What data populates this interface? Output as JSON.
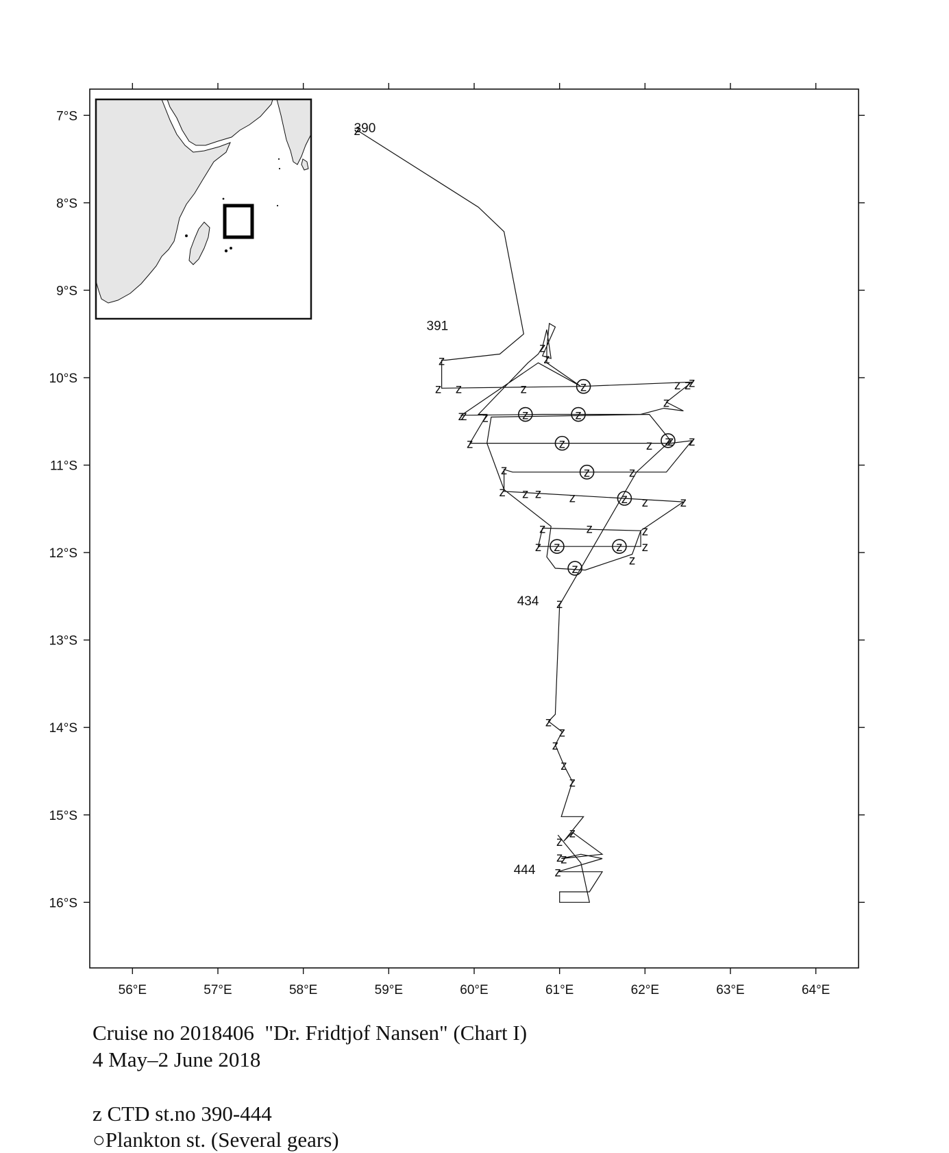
{
  "map": {
    "lon_range": [
      55.5,
      64.5
    ],
    "lat_range": [
      -16.75,
      -6.7
    ],
    "lon_ticks": [
      "56°E",
      "57°E",
      "58°E",
      "59°E",
      "60°E",
      "61°E",
      "62°E",
      "63°E",
      "64°E"
    ],
    "lat_ticks": [
      "7°S",
      "8°S",
      "9°S",
      "10°S",
      "11°S",
      "12°S",
      "13°S",
      "14°S",
      "15°S",
      "16°S"
    ],
    "station_labels": [
      {
        "text": "390",
        "lon": 58.72,
        "lat": -7.14
      },
      {
        "text": "391",
        "lon": 59.57,
        "lat": -9.4
      },
      {
        "text": "434",
        "lon": 60.63,
        "lat": -12.55
      },
      {
        "text": "444",
        "lon": 60.59,
        "lat": -15.62
      }
    ],
    "inset": {
      "description_icon": "africa-indian-ocean-locator-map",
      "land_color": "#e6e6e6",
      "study_area_box": "study-area-marker"
    }
  },
  "cruise_track": [
    [
      58.63,
      -7.17
    ],
    [
      60.05,
      -8.05
    ],
    [
      60.35,
      -8.33
    ],
    [
      60.58,
      -9.5
    ],
    [
      60.3,
      -9.73
    ],
    [
      59.67,
      -9.8
    ],
    [
      59.62,
      -9.8
    ],
    [
      59.62,
      -10.12
    ],
    [
      61.25,
      -10.1
    ],
    [
      62.55,
      -10.05
    ],
    [
      62.25,
      -10.28
    ],
    [
      62.45,
      -10.38
    ],
    [
      62.22,
      -10.35
    ],
    [
      61.95,
      -10.42
    ],
    [
      60.8,
      -10.42
    ],
    [
      59.85,
      -10.43
    ],
    [
      60.75,
      -9.83
    ],
    [
      61.25,
      -10.1
    ],
    [
      60.85,
      -9.83
    ],
    [
      60.85,
      -9.65
    ],
    [
      60.88,
      -9.38
    ],
    [
      60.95,
      -9.42
    ],
    [
      60.8,
      -9.75
    ],
    [
      60.9,
      -9.78
    ],
    [
      60.85,
      -9.45
    ],
    [
      60.8,
      -9.65
    ],
    [
      60.75,
      -9.73
    ],
    [
      60.63,
      -9.83
    ],
    [
      60.05,
      -10.42
    ],
    [
      60.15,
      -10.42
    ],
    [
      59.95,
      -10.75
    ],
    [
      62.0,
      -10.75
    ],
    [
      62.3,
      -10.75
    ],
    [
      62.55,
      -10.72
    ],
    [
      62.25,
      -11.08
    ],
    [
      61.5,
      -11.08
    ],
    [
      60.45,
      -11.08
    ],
    [
      60.35,
      -11.05
    ],
    [
      60.35,
      -11.3
    ],
    [
      61.75,
      -11.38
    ],
    [
      62.45,
      -11.42
    ],
    [
      61.95,
      -11.75
    ],
    [
      60.8,
      -11.72
    ],
    [
      60.75,
      -11.93
    ],
    [
      61.95,
      -11.93
    ],
    [
      61.95,
      -11.75
    ],
    [
      61.85,
      -12.02
    ],
    [
      61.3,
      -12.2
    ],
    [
      60.95,
      -12.18
    ],
    [
      60.85,
      -12.05
    ],
    [
      60.9,
      -11.7
    ],
    [
      60.35,
      -11.28
    ],
    [
      60.15,
      -10.75
    ],
    [
      60.2,
      -10.45
    ],
    [
      62.05,
      -10.42
    ],
    [
      62.3,
      -10.72
    ],
    [
      61.9,
      -11.08
    ],
    [
      61.0,
      -12.6
    ],
    [
      60.95,
      -13.85
    ],
    [
      60.87,
      -13.93
    ],
    [
      61.03,
      -14.05
    ],
    [
      60.95,
      -14.2
    ],
    [
      61.05,
      -14.43
    ],
    [
      61.15,
      -14.62
    ],
    [
      61.02,
      -15.02
    ],
    [
      61.28,
      -15.02
    ],
    [
      61.05,
      -15.3
    ],
    [
      61.15,
      -15.2
    ],
    [
      61.5,
      -15.45
    ],
    [
      61.02,
      -15.5
    ],
    [
      61.25,
      -15.45
    ],
    [
      61.5,
      -15.5
    ],
    [
      60.98,
      -15.65
    ],
    [
      61.5,
      -15.65
    ],
    [
      61.35,
      -15.88
    ],
    [
      61.0,
      -15.88
    ],
    [
      61.0,
      -16.0
    ],
    [
      61.35,
      -16.0
    ],
    [
      61.25,
      -15.55
    ],
    [
      60.98,
      -15.23
    ]
  ],
  "ctd_stations": [
    [
      58.63,
      -7.17
    ],
    [
      59.62,
      -9.8
    ],
    [
      59.58,
      -10.12
    ],
    [
      59.82,
      -10.12
    ],
    [
      59.85,
      -10.43
    ],
    [
      59.88,
      -10.43
    ],
    [
      60.13,
      -10.45
    ],
    [
      59.95,
      -10.75
    ],
    [
      60.8,
      -9.65
    ],
    [
      60.85,
      -9.78
    ],
    [
      60.58,
      -10.12
    ],
    [
      60.35,
      -11.05
    ],
    [
      60.33,
      -11.3
    ],
    [
      60.6,
      -11.32
    ],
    [
      60.75,
      -11.32
    ],
    [
      61.15,
      -11.37
    ],
    [
      60.8,
      -11.72
    ],
    [
      61.35,
      -11.72
    ],
    [
      60.75,
      -11.93
    ],
    [
      62.0,
      -11.93
    ],
    [
      61.85,
      -12.08
    ],
    [
      61.0,
      -12.58
    ],
    [
      62.05,
      -10.77
    ],
    [
      62.3,
      -10.72
    ],
    [
      62.55,
      -10.72
    ],
    [
      62.25,
      -10.28
    ],
    [
      62.38,
      -10.08
    ],
    [
      62.5,
      -10.08
    ],
    [
      62.55,
      -10.05
    ],
    [
      61.85,
      -11.08
    ],
    [
      62.0,
      -11.42
    ],
    [
      62.45,
      -11.42
    ],
    [
      62.0,
      -11.75
    ],
    [
      60.87,
      -13.93
    ],
    [
      61.03,
      -14.05
    ],
    [
      60.95,
      -14.2
    ],
    [
      61.05,
      -14.43
    ],
    [
      61.15,
      -14.62
    ],
    [
      61.15,
      -15.2
    ],
    [
      61.0,
      -15.3
    ],
    [
      61.0,
      -15.48
    ],
    [
      61.05,
      -15.5
    ],
    [
      60.98,
      -15.65
    ]
  ],
  "plankton_stations": [
    [
      61.28,
      -10.1
    ],
    [
      60.6,
      -10.42
    ],
    [
      61.22,
      -10.42
    ],
    [
      61.03,
      -10.75
    ],
    [
      62.27,
      -10.72
    ],
    [
      61.32,
      -11.08
    ],
    [
      61.76,
      -11.38
    ],
    [
      60.97,
      -11.93
    ],
    [
      61.7,
      -11.93
    ],
    [
      61.18,
      -12.18
    ]
  ],
  "caption": {
    "title": "Cruise no 2018406  \"Dr. Fridtjof Nansen\" (Chart I)",
    "date": "4 May–2 June 2018",
    "legend_ctd": "z CTD st.no 390-444",
    "legend_plankton": "○Plankton st. (Several gears)"
  }
}
